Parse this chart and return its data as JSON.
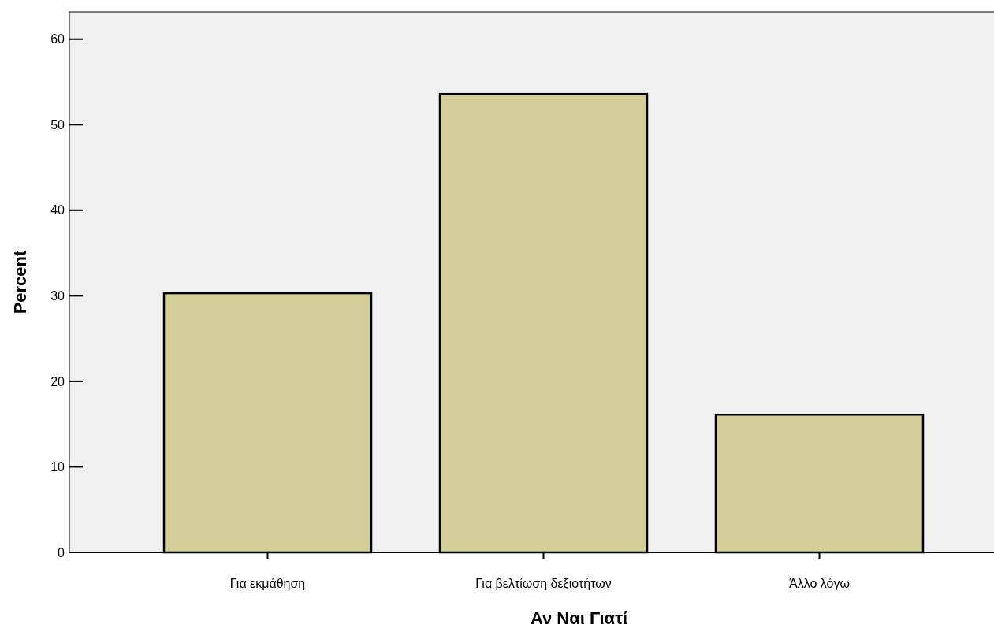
{
  "chart_data": {
    "type": "bar",
    "xlabel": "Αν Ναι Γιατί",
    "ylabel": "Percent",
    "categories": [
      "Για εκμάθηση",
      "Για βελτίωση δεξιοτήτων",
      "Άλλο λόγω"
    ],
    "values": [
      30.3,
      53.6,
      16.1
    ],
    "color": "#d3ce97",
    "ylim": [
      0,
      63.2
    ],
    "yticks": [
      0,
      10,
      20,
      30,
      40,
      50,
      60
    ],
    "grid": false
  }
}
